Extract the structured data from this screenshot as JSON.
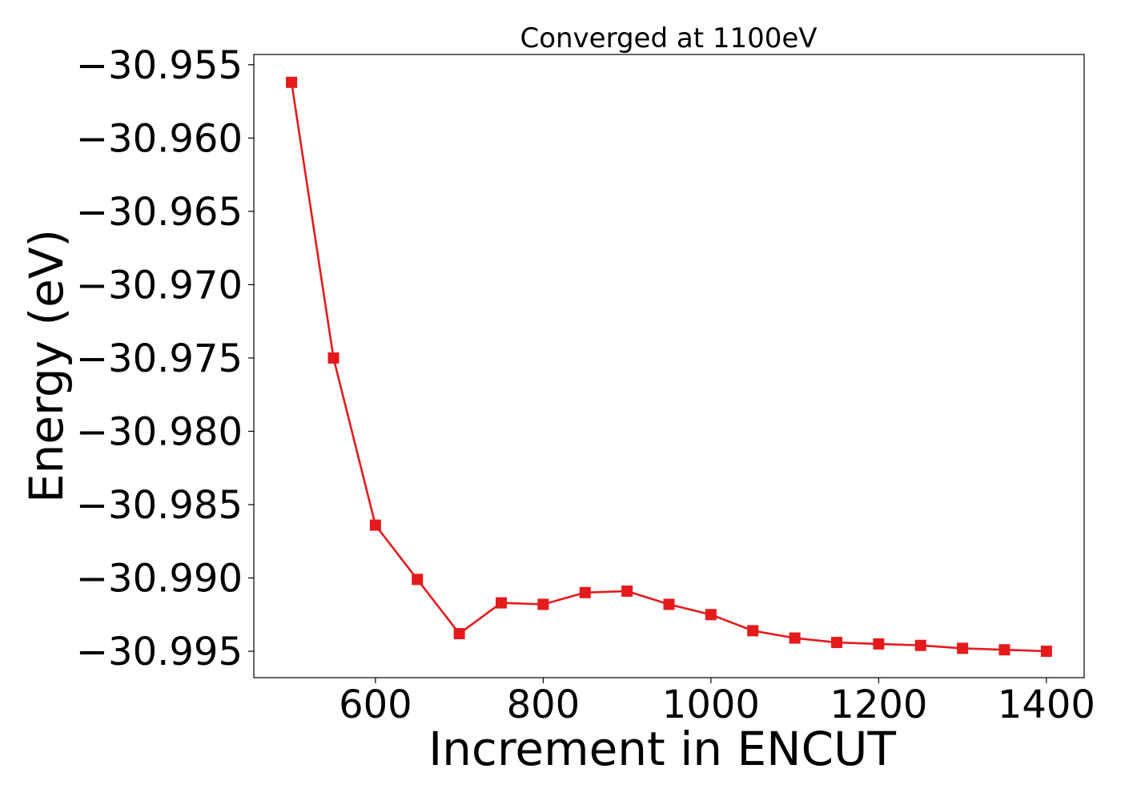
{
  "chart_data": {
    "type": "line",
    "title": "Converged at 1100eV",
    "xlabel": "Increment in ENCUT",
    "ylabel": "Energy (eV)",
    "xlim": [
      455,
      1445
    ],
    "ylim": [
      -30.9968,
      -30.9543
    ],
    "xticks": [
      600,
      800,
      1000,
      1200,
      1400
    ],
    "xtick_labels": [
      "600",
      "800",
      "1000",
      "1200",
      "1400"
    ],
    "yticks": [
      -30.955,
      -30.96,
      -30.965,
      -30.97,
      -30.975,
      -30.98,
      -30.985,
      -30.99,
      -30.995
    ],
    "ytick_labels": [
      "−30.955",
      "−30.960",
      "−30.965",
      "−30.970",
      "−30.975",
      "−30.980",
      "−30.985",
      "−30.990",
      "−30.995"
    ],
    "grid": false,
    "marker": "square",
    "color": "#e41a1c",
    "series": [
      {
        "x": [
          500,
          550,
          600,
          650,
          700,
          750,
          800,
          850,
          900,
          950,
          1000,
          1050,
          1100,
          1150,
          1200,
          1250,
          1300,
          1350,
          1400
        ],
        "y": [
          -30.9562,
          -30.975,
          -30.9864,
          -30.9901,
          -30.9938,
          -30.9917,
          -30.9918,
          -30.991,
          -30.9909,
          -30.9918,
          -30.9925,
          -30.9936,
          -30.9941,
          -30.9944,
          -30.9945,
          -30.9946,
          -30.9948,
          -30.9949,
          -30.995
        ]
      }
    ]
  }
}
